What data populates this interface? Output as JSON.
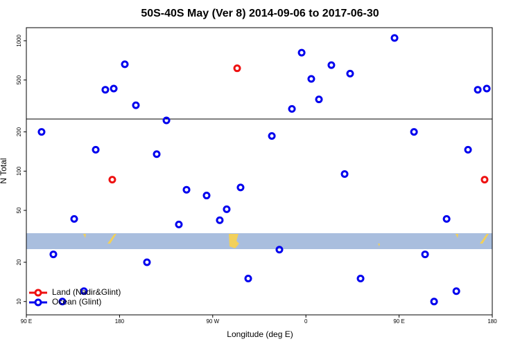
{
  "chart_data": {
    "type": "scatter",
    "title": "50S-40S May (Ver 8)   2014-09-06 to 2017-06-30",
    "x_label": "Longitude (deg E)",
    "y_label": "N Total",
    "xlim": [
      90,
      540
    ],
    "xticks": [
      {
        "value": 90,
        "label": "90 E"
      },
      {
        "value": 180,
        "label": "180"
      },
      {
        "value": 270,
        "label": "90 W"
      },
      {
        "value": 360,
        "label": "0"
      },
      {
        "value": 450,
        "label": "90 E"
      },
      {
        "value": 540,
        "label": "180"
      }
    ],
    "ylim": [
      7.9,
      1260
    ],
    "log_y": true,
    "yticks": [
      10,
      20,
      50,
      100,
      200,
      500,
      1000
    ],
    "legend": "bottom-left",
    "series": [
      {
        "name": "Land (Nadir&Glint)",
        "color": "#ee1111",
        "x": [
          293.6,
          173.0,
          532.6
        ],
        "values": [
          615,
          86,
          86
        ]
      },
      {
        "name": "Ocean (Glint)",
        "color": "#0000ee",
        "x": [
          104.7,
          116.1,
          124.8,
          136.2,
          145.6,
          157.0,
          166.3,
          174.4,
          185.1,
          195.8,
          206.5,
          215.9,
          225.3,
          237.3,
          244.7,
          264.1,
          276.8,
          283.5,
          296.9,
          304.3,
          327.1,
          334.4,
          346.5,
          355.9,
          365.2,
          372.6,
          384.6,
          397.4,
          402.7,
          412.8,
          445.6,
          464.4,
          475.1,
          483.8,
          495.9,
          505.3,
          516.6,
          526.0,
          534.7
        ],
        "values": [
          200,
          23,
          10,
          43,
          12,
          146,
          421,
          430,
          660,
          320,
          20,
          135,
          245,
          39,
          72,
          65,
          42,
          51,
          75,
          15,
          186,
          25,
          300,
          810,
          510,
          355,
          650,
          95,
          560,
          15,
          1050,
          200,
          23,
          10,
          43,
          12,
          146,
          421,
          430
        ]
      }
    ]
  }
}
